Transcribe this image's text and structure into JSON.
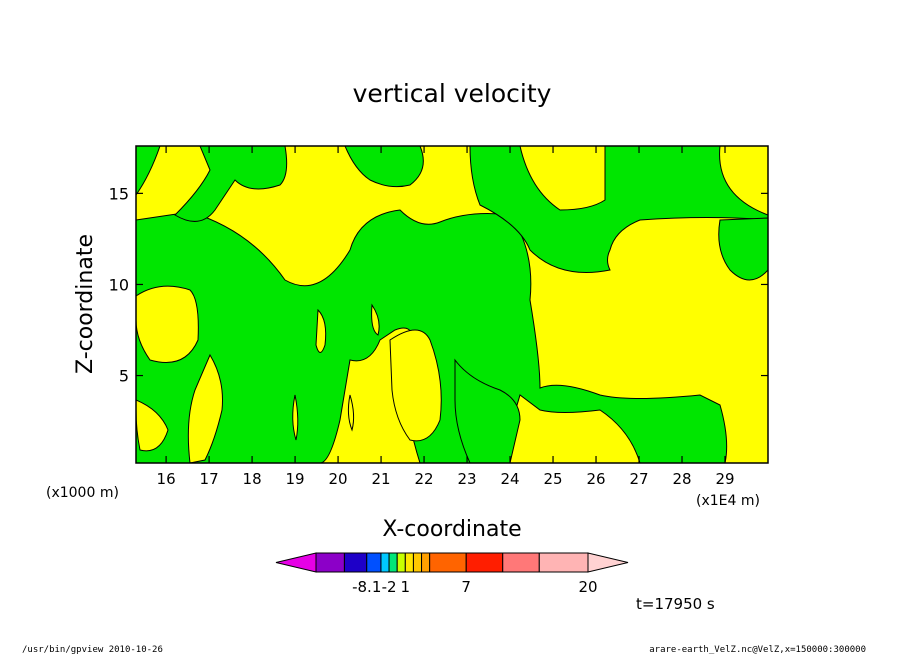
{
  "chart_data": {
    "type": "heatmap",
    "title": "vertical velocity",
    "xlabel": "X-coordinate",
    "ylabel": "Z-coordinate",
    "x_unit": "(x1E4 m)",
    "y_unit": "(x1000 m)",
    "xlim": [
      15.3,
      30.0
    ],
    "ylim": [
      0.2,
      17.6
    ],
    "x_ticks": [
      16,
      17,
      18,
      19,
      20,
      21,
      22,
      23,
      24,
      25,
      26,
      27,
      28,
      29
    ],
    "y_ticks": [
      5,
      10,
      15
    ],
    "colors": {
      "negative": "#00e600",
      "positive": "#ffff00"
    },
    "colorbar": {
      "colors": [
        "#e600e6",
        "#8c00c8",
        "#1e00c8",
        "#0050ff",
        "#00c8ff",
        "#00e678",
        "#c8ff00",
        "#ffe600",
        "#ffc800",
        "#ffa000",
        "#ff6400",
        "#ff1e00",
        "#ff7878",
        "#ffb4b4",
        "#ffd2d2"
      ],
      "labels": [
        {
          "text": "-8.1",
          "edge": 2
        },
        {
          "text": "-2",
          "edge": 4
        },
        {
          "text": "1",
          "edge": 6
        },
        {
          "text": "7",
          "edge": 10
        },
        {
          "text": "20",
          "edge": 13
        }
      ]
    },
    "time_label": "t=17950 s"
  },
  "footer": {
    "left": "/usr/bin/gpview   2010-10-26",
    "right": "arare-earth_VelZ.nc@VelZ,x=150000:300000"
  }
}
